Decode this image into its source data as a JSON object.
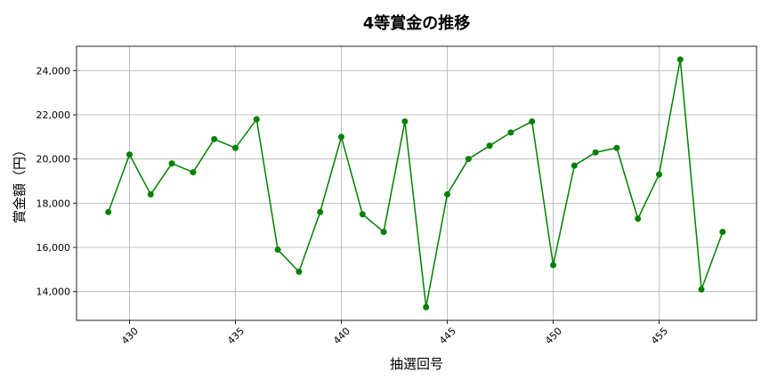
{
  "chart_data": {
    "type": "line",
    "title": "4等賞金の推移",
    "xlabel": "抽選回号",
    "ylabel": "賞金額（円）",
    "x": [
      429,
      430,
      431,
      432,
      433,
      434,
      435,
      436,
      437,
      438,
      439,
      440,
      441,
      442,
      443,
      444,
      445,
      446,
      447,
      448,
      449,
      450,
      451,
      452,
      453,
      454,
      455,
      456,
      457,
      458
    ],
    "values": [
      17600,
      20200,
      18400,
      19800,
      19400,
      20900,
      20500,
      21800,
      15900,
      14900,
      17600,
      21000,
      17500,
      16700,
      21700,
      13300,
      18400,
      20000,
      20600,
      21200,
      21700,
      15200,
      19700,
      20300,
      20500,
      17300,
      19300,
      24500,
      14100,
      16700
    ],
    "xlim": [
      427.5,
      459.6
    ],
    "ylim": [
      12700,
      25100
    ],
    "xticks": [
      430,
      435,
      440,
      445,
      450,
      455
    ],
    "xtick_labels": [
      "430",
      "435",
      "440",
      "445",
      "450",
      "455"
    ],
    "yticks": [
      14000,
      16000,
      18000,
      20000,
      22000,
      24000
    ],
    "ytick_labels": [
      "14,000",
      "16,000",
      "18,000",
      "20,000",
      "22,000",
      "24,000"
    ],
    "grid": true,
    "marker": "circle",
    "color": "#008000"
  }
}
